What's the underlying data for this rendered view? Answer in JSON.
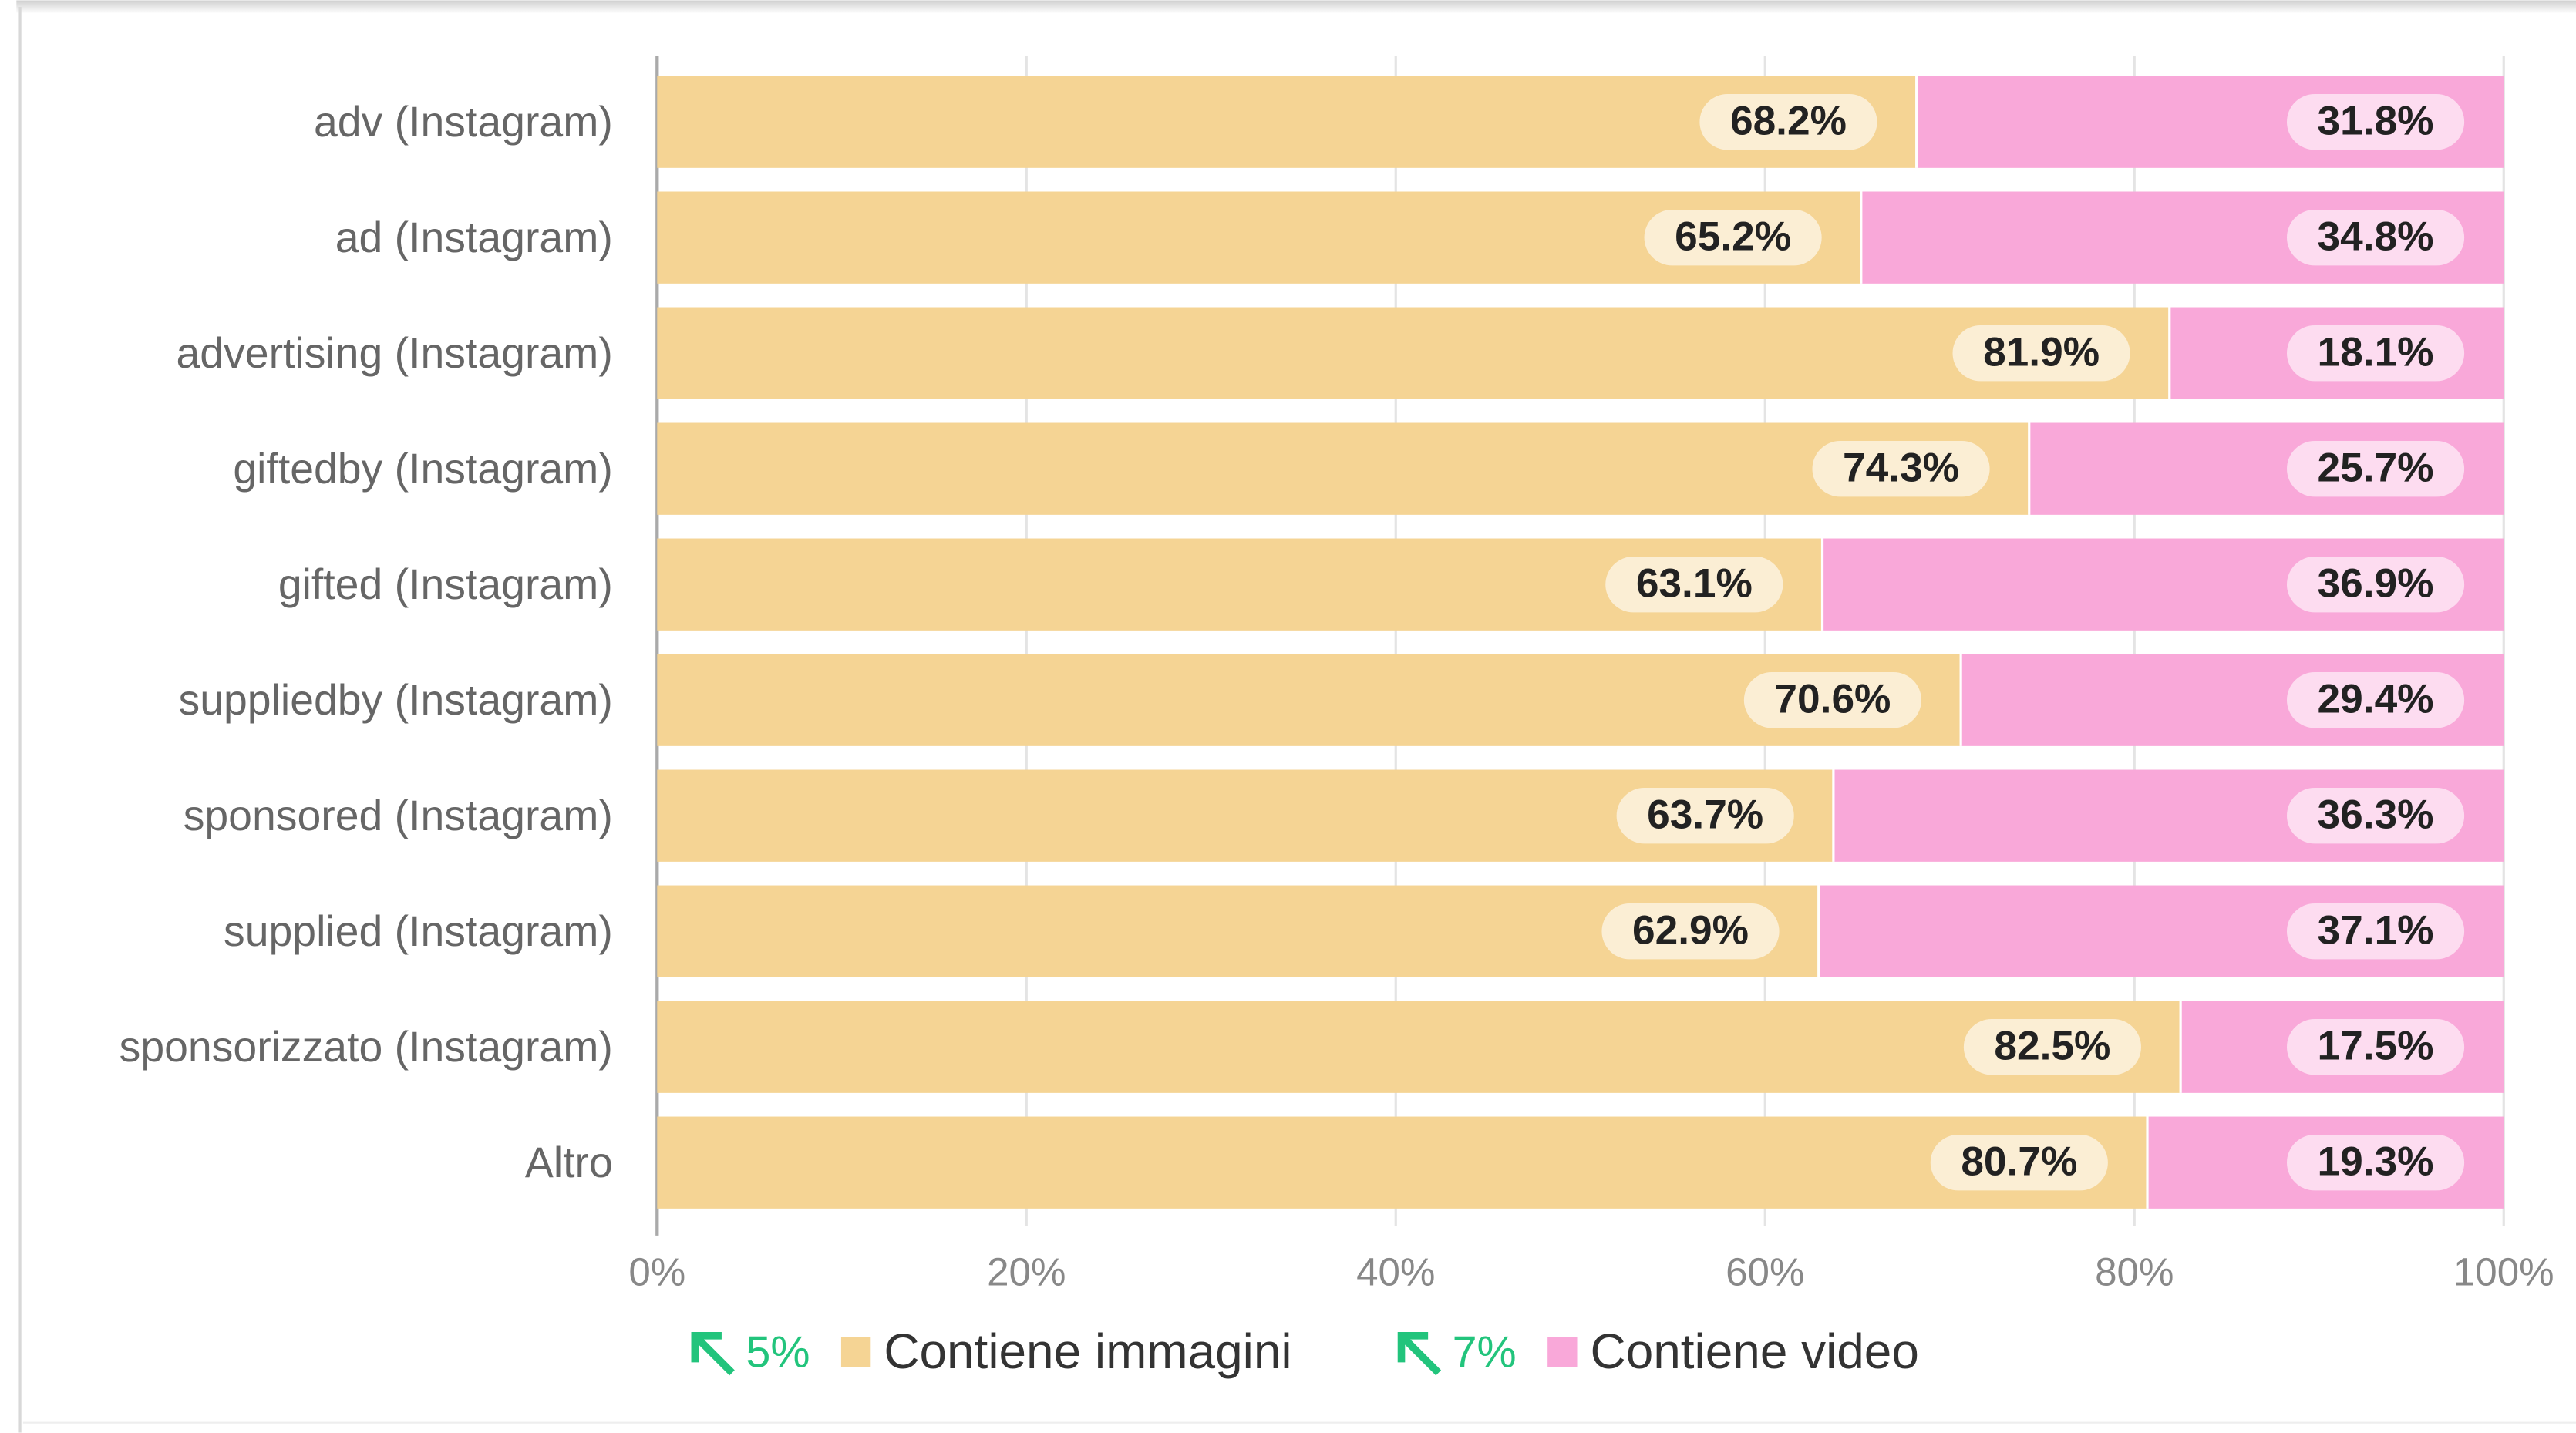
{
  "chart_data": {
    "type": "stacked_bar_horizontal",
    "categories": [
      "adv (Instagram)",
      "ad (Instagram)",
      "advertising (Instagram)",
      "giftedby (Instagram)",
      "gifted (Instagram)",
      "suppliedby (Instagram)",
      "sponsored (Instagram)",
      "supplied (Instagram)",
      "sponsorizzato (Instagram)",
      "Altro"
    ],
    "series": [
      {
        "name": "Contiene immagini",
        "color": "#f5d494",
        "change": "5%",
        "values": [
          68.2,
          65.2,
          81.9,
          74.3,
          63.1,
          70.6,
          63.7,
          62.9,
          82.5,
          80.7
        ],
        "value_labels": [
          "68.2%",
          "65.2%",
          "81.9%",
          "74.3%",
          "63.1%",
          "70.6%",
          "63.7%",
          "62.9%",
          "82.5%",
          "80.7%"
        ]
      },
      {
        "name": "Contiene video",
        "color": "#f9a8d9",
        "change": "7%",
        "values": [
          31.8,
          34.8,
          18.1,
          25.7,
          36.9,
          29.4,
          36.3,
          37.1,
          17.5,
          19.3
        ],
        "value_labels": [
          "31.8%",
          "34.8%",
          "18.1%",
          "25.7%",
          "36.9%",
          "29.4%",
          "36.3%",
          "37.1%",
          "17.5%",
          "19.3%"
        ]
      }
    ],
    "xlim": [
      0,
      100
    ],
    "xticks": [
      {
        "value": 0,
        "label": "0%"
      },
      {
        "value": 20,
        "label": "20%"
      },
      {
        "value": 40,
        "label": "40%"
      },
      {
        "value": 60,
        "label": "60%"
      },
      {
        "value": 80,
        "label": "80%"
      },
      {
        "value": 100,
        "label": "100%"
      }
    ],
    "grid": true,
    "legend": "bottom"
  }
}
